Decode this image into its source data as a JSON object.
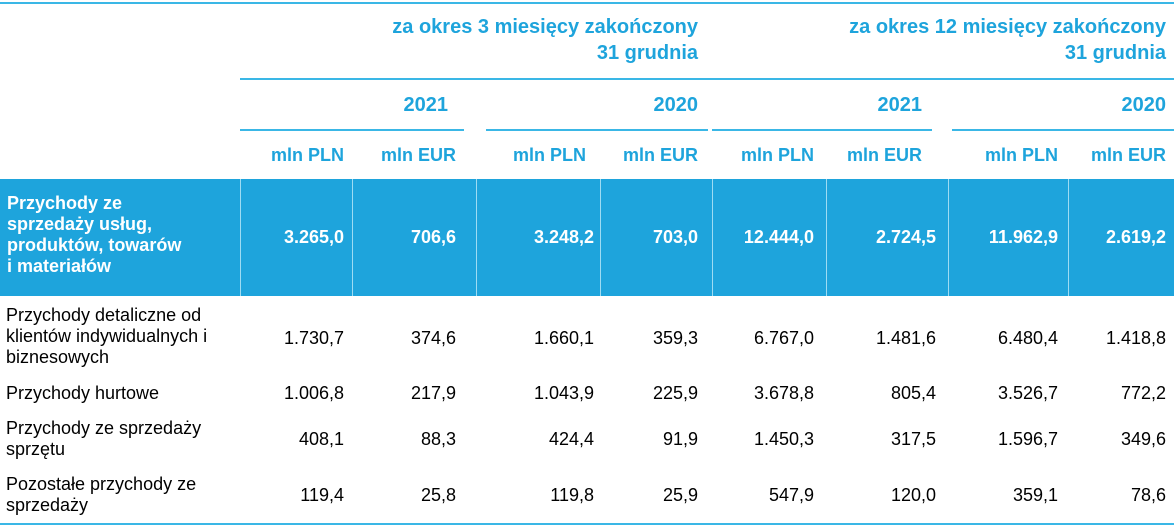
{
  "header": {
    "periods": [
      {
        "line1": "za okres 3 miesięcy zakończony",
        "line2": "31 grudnia"
      },
      {
        "line1": "za okres 12 miesięcy zakończony",
        "line2": "31 grudnia"
      }
    ],
    "years": [
      "2021",
      "2020",
      "2021",
      "2020"
    ],
    "units": [
      "mln PLN",
      "mln EUR",
      "mln PLN",
      "mln EUR",
      "mln PLN",
      "mln EUR",
      "mln PLN",
      "mln EUR"
    ]
  },
  "rows": [
    {
      "label": "Przychody ze sprzedaży usług, produktów, towarów i materiałów",
      "label_lines": [
        "Przychody ze",
        "sprzedaży usług,",
        "produktów, towarów",
        "i materiałów"
      ],
      "values": [
        "3.265,0",
        "706,6",
        "3.248,2",
        "703,0",
        "12.444,0",
        "2.724,5",
        "11.962,9",
        "2.619,2"
      ]
    },
    {
      "label_lines": [
        "Przychody detaliczne od",
        "klientów indywidualnych i",
        "biznesowych"
      ],
      "values": [
        "1.730,7",
        "374,6",
        "1.660,1",
        "359,3",
        "6.767,0",
        "1.481,6",
        "6.480,4",
        "1.418,8"
      ]
    },
    {
      "label_lines": [
        "Przychody hurtowe"
      ],
      "values": [
        "1.006,8",
        "217,9",
        "1.043,9",
        "225,9",
        "3.678,8",
        "805,4",
        "3.526,7",
        "772,2"
      ]
    },
    {
      "label_lines": [
        "Przychody ze sprzedaży",
        "sprzętu"
      ],
      "values": [
        "408,1",
        "88,3",
        "424,4",
        "91,9",
        "1.450,3",
        "317,5",
        "1.596,7",
        "349,6"
      ]
    },
    {
      "label_lines": [
        "Pozostałe przychody ze",
        "sprzedaży"
      ],
      "values": [
        "119,4",
        "25,8",
        "119,8",
        "25,9",
        "547,9",
        "120,0",
        "359,1",
        "78,6"
      ]
    }
  ]
}
